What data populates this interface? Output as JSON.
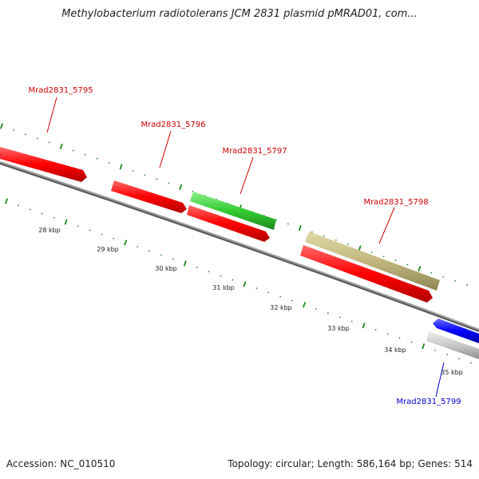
{
  "title": "Methylobacterium radiotolerans JCM 2831 plasmid pMRAD01, com...",
  "footer": {
    "accession": "Accession: NC_010510",
    "summary": "Topology: circular; Length: 586,164 bp; Genes: 514"
  },
  "kbp_labels": [
    "28 kbp",
    "29 kbp",
    "30 kbp",
    "31 kbp",
    "32 kbp",
    "33 kbp",
    "34 kbp",
    "35 kbp"
  ],
  "genes": [
    {
      "name": "Mrad2831_5795",
      "color": "#ff0000",
      "strand": "forward"
    },
    {
      "name": "Mrad2831_5796",
      "color": "#ff0000",
      "strand": "forward"
    },
    {
      "name": "Mrad2831_5797",
      "color": "#33cc33",
      "strand": "forward"
    },
    {
      "name": "Mrad2831_5798",
      "color": "#bdb76b",
      "strand": "forward"
    },
    {
      "name": "Mrad2831_5799",
      "color": "#0000ff",
      "strand": "reverse"
    }
  ],
  "colors": {
    "backbone": "#808080",
    "tick": "#1a8a1a",
    "label_red": "#cc0000",
    "label_blue": "#0000cc",
    "gray_feature": "#c8c8c8"
  }
}
